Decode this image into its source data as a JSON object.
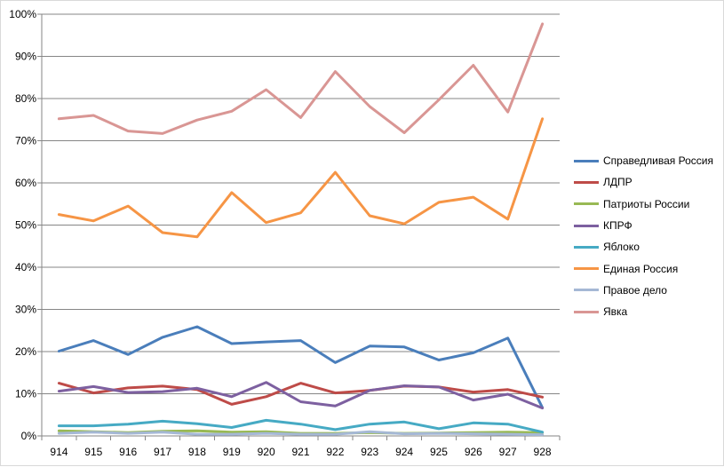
{
  "chart_data": {
    "type": "line",
    "title": "",
    "xlabel": "",
    "ylabel": "",
    "x": [
      "914",
      "915",
      "916",
      "917",
      "918",
      "919",
      "920",
      "921",
      "922",
      "923",
      "924",
      "925",
      "926",
      "927",
      "928"
    ],
    "y_ticks": [
      "0%",
      "10%",
      "20%",
      "30%",
      "40%",
      "50%",
      "60%",
      "70%",
      "80%",
      "90%",
      "100%"
    ],
    "ylim": [
      0,
      100
    ],
    "y_unit": "%",
    "grid": "horizontal",
    "legend_position": "right",
    "series": [
      {
        "name": "Справедливая Россия",
        "color": "#4a7ebb",
        "values": [
          20.1,
          22.6,
          19.3,
          23.4,
          25.9,
          21.9,
          22.3,
          22.6,
          17.4,
          21.3,
          21.1,
          18.0,
          19.7,
          23.2,
          6.7
        ]
      },
      {
        "name": "ЛДПР",
        "color": "#be4b48",
        "values": [
          12.5,
          10.2,
          11.4,
          11.8,
          11.0,
          7.5,
          9.3,
          12.5,
          10.2,
          10.8,
          11.8,
          11.6,
          10.4,
          11.0,
          9.2
        ]
      },
      {
        "name": "Патриоты России",
        "color": "#98b954",
        "values": [
          1.2,
          1.0,
          0.8,
          1.1,
          1.2,
          0.9,
          1.0,
          0.6,
          0.6,
          0.8,
          0.6,
          0.7,
          0.8,
          0.9,
          0.8
        ]
      },
      {
        "name": "КПРФ",
        "color": "#7d60a0",
        "values": [
          10.6,
          11.7,
          10.3,
          10.5,
          11.3,
          9.3,
          12.7,
          8.1,
          7.1,
          10.8,
          11.9,
          11.6,
          8.5,
          9.9,
          6.6
        ]
      },
      {
        "name": "Яблоко",
        "color": "#46aac4",
        "values": [
          2.4,
          2.4,
          2.8,
          3.5,
          2.9,
          2.0,
          3.7,
          2.8,
          1.5,
          2.8,
          3.3,
          1.7,
          3.1,
          2.8,
          0.9
        ]
      },
      {
        "name": "Единая Россия",
        "color": "#f69545",
        "values": [
          52.5,
          51.0,
          54.5,
          48.2,
          47.2,
          57.7,
          50.6,
          52.9,
          62.5,
          52.2,
          50.3,
          55.4,
          56.6,
          51.4,
          75.2
        ]
      },
      {
        "name": "Правое дело",
        "color": "#a5b8d5",
        "values": [
          0.6,
          0.9,
          0.6,
          0.9,
          0.4,
          0.4,
          0.6,
          0.4,
          0.4,
          1.0,
          0.5,
          0.6,
          0.5,
          0.4,
          0.3
        ]
      },
      {
        "name": "Явка",
        "color": "#d99694",
        "values": [
          75.2,
          76.0,
          72.3,
          71.7,
          74.9,
          77.0,
          82.1,
          75.5,
          86.4,
          78.1,
          71.9,
          79.7,
          87.9,
          76.8,
          97.7
        ]
      }
    ]
  }
}
